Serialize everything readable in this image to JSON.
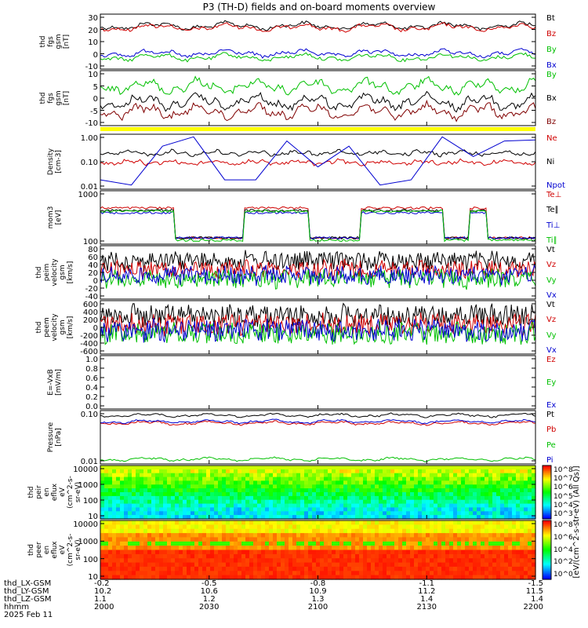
{
  "title": "P3 (TH-D) fields and on-board moments overview",
  "colorbar_label": "[eV/(cm^2-s-str-eV) (All Qs)]",
  "colorbar_ticks": [
    "10^8",
    "10^7",
    "10^6",
    "10^5",
    "10^4",
    "10^3"
  ],
  "colorbar2_ticks": [
    "10^8",
    "10^6",
    "10^4",
    "10^2",
    "10^0"
  ],
  "chart_data": [
    {
      "type": "line",
      "ylabel": [
        "thd",
        "fgs",
        "gsm",
        "[nT]"
      ],
      "yticks": [
        "30",
        "20",
        "10",
        "0",
        "-10"
      ],
      "ylim": [
        -13,
        35
      ],
      "series": [
        {
          "name": "Bt",
          "color": "#000000",
          "level": 22
        },
        {
          "name": "Bz",
          "color": "#d00000",
          "level": 21
        },
        {
          "name": "By",
          "color": "#00c000",
          "level": -5
        },
        {
          "name": "Bx",
          "color": "#0000d0",
          "level": -1
        }
      ]
    },
    {
      "type": "line",
      "ylabel": [
        "thd",
        "fgs",
        "gsm",
        "[nT]"
      ],
      "yticks": [
        "10",
        "5",
        "0",
        "-5",
        "-10"
      ],
      "ylim": [
        -13,
        13
      ],
      "series": [
        {
          "name": "By",
          "color": "#00c000",
          "level": 6
        },
        {
          "name": "Bx",
          "color": "#000000",
          "level": -1
        },
        {
          "name": "Bz",
          "color": "#800000",
          "level": -6
        }
      ]
    },
    {
      "type": "line",
      "ylabel": [
        "Density",
        "[cm-3]"
      ],
      "yticks": [
        "1.00",
        "0.10",
        "0.01"
      ],
      "log": true,
      "series": [
        {
          "name": "Ne",
          "color": "#d00000"
        },
        {
          "name": "Ni",
          "color": "#000000"
        },
        {
          "name": "Npot",
          "color": "#0000d0"
        }
      ]
    },
    {
      "type": "line",
      "ylabel": [
        "mom3",
        "[eV]"
      ],
      "yticks": [
        "1000",
        "100"
      ],
      "log": true,
      "series": [
        {
          "name": "Te⊥",
          "color": "#d00000"
        },
        {
          "name": "Te∥",
          "color": "#000000"
        },
        {
          "name": "Ti⊥",
          "color": "#0000d0"
        },
        {
          "name": "Ti∥",
          "color": "#00c000"
        }
      ]
    },
    {
      "type": "line",
      "ylabel": [
        "thd",
        "peim",
        "velocity",
        "gsm",
        "[km/s]"
      ],
      "yticks": [
        "80",
        "60",
        "40",
        "20",
        "0",
        "-20",
        "-40"
      ],
      "ylim": [
        -50,
        80
      ],
      "series": [
        {
          "name": "Vt",
          "color": "#000000"
        },
        {
          "name": "Vz",
          "color": "#d00000"
        },
        {
          "name": "Vy",
          "color": "#00c000"
        },
        {
          "name": "Vx",
          "color": "#0000d0"
        }
      ]
    },
    {
      "type": "line",
      "ylabel": [
        "thd",
        "peem",
        "velocity",
        "gsm",
        "[km/s]"
      ],
      "yticks": [
        "600",
        "400",
        "200",
        "0",
        "-200",
        "-400",
        "-600"
      ],
      "ylim": [
        -700,
        700
      ],
      "series": [
        {
          "name": "Vt",
          "color": "#000000"
        },
        {
          "name": "Vz",
          "color": "#d00000"
        },
        {
          "name": "Vy",
          "color": "#00c000"
        },
        {
          "name": "Vx",
          "color": "#0000d0"
        }
      ]
    },
    {
      "type": "line",
      "ylabel": [
        "E=-VxB",
        "[mV/m]"
      ],
      "yticks": [
        "1.0",
        "0.8",
        "0.6",
        "0.4",
        "0.2",
        "0.0"
      ],
      "ylim": [
        0,
        1
      ],
      "series": [
        {
          "name": "Ez",
          "color": "#d00000"
        },
        {
          "name": "Ey",
          "color": "#00c000"
        },
        {
          "name": "Ex",
          "color": "#0000d0"
        }
      ]
    },
    {
      "type": "line",
      "ylabel": [
        "Pressure",
        "[nPa]"
      ],
      "yticks": [
        "0.10",
        "0.01"
      ],
      "log": true,
      "series": [
        {
          "name": "Pt",
          "color": "#000000"
        },
        {
          "name": "Pb",
          "color": "#d00000"
        },
        {
          "name": "Pe",
          "color": "#00c000"
        },
        {
          "name": "Pi",
          "color": "#0000d0"
        }
      ]
    },
    {
      "type": "heatmap",
      "ylabel": [
        "thd",
        "peir",
        "en",
        "eflux",
        "eV",
        "(cm^2-s-",
        "sr-eV)"
      ],
      "yticks": [
        "10000",
        "1000",
        "100",
        "10"
      ],
      "log": true
    },
    {
      "type": "heatmap",
      "ylabel": [
        "thd",
        "peer",
        "en",
        "eflux",
        "eV",
        "(cm^2-s-",
        "sr-eV)"
      ],
      "yticks": [
        "10000",
        "1000",
        "100",
        "10"
      ],
      "log": true
    }
  ],
  "x_axis": {
    "row_labels": [
      "thd_LX-GSM",
      "thd_LY-GSM",
      "thd_LZ-GSM",
      "hhmm",
      "2025 Feb 11"
    ],
    "ticks": [
      {
        "lx": "-0.2",
        "ly": "10.2",
        "lz": "1.1",
        "hhmm": "2000"
      },
      {
        "lx": "-0.5",
        "ly": "10.6",
        "lz": "1.2",
        "hhmm": "2030"
      },
      {
        "lx": "-0.8",
        "ly": "10.9",
        "lz": "1.3",
        "hhmm": "2100"
      },
      {
        "lx": "-1.1",
        "ly": "11.2",
        "lz": "1.4",
        "hhmm": "2130"
      },
      {
        "lx": "-1.5",
        "ly": "11.5",
        "lz": "1.4",
        "hhmm": "2200"
      }
    ]
  }
}
